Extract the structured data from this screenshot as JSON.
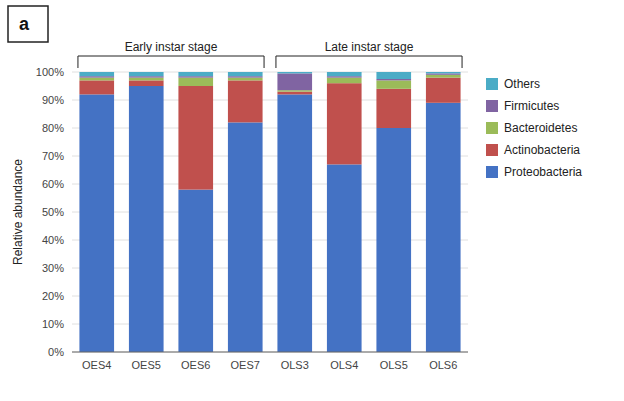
{
  "chart_data": {
    "type": "bar",
    "stacked": true,
    "categories": [
      "OES4",
      "OES5",
      "OES6",
      "OES7",
      "OLS3",
      "OLS4",
      "OLS5",
      "OLS6"
    ],
    "series": [
      {
        "name": "Proteobacteria",
        "color": "#4472C4",
        "values": [
          92,
          95,
          58,
          82,
          92,
          67,
          80,
          89
        ]
      },
      {
        "name": "Actinobacteria",
        "color": "#C0504D",
        "values": [
          5,
          2,
          37,
          15,
          1,
          29,
          14,
          9
        ]
      },
      {
        "name": "Bacteroidetes",
        "color": "#9BBB59",
        "values": [
          1,
          1,
          3,
          1,
          0.5,
          2,
          3,
          1
        ]
      },
      {
        "name": "Firmicutes",
        "color": "#8064A2",
        "values": [
          0.5,
          0.5,
          0.5,
          0.5,
          6,
          0.5,
          0.5,
          0.5
        ]
      },
      {
        "name": "Others",
        "color": "#4BACC6",
        "values": [
          1.5,
          1.5,
          1.5,
          1.5,
          0.5,
          1.5,
          2.5,
          0.5
        ]
      }
    ],
    "y_label": "Relative abundance",
    "ylim": [
      0,
      100
    ],
    "yticks": [
      {
        "value": 0,
        "label": "0%"
      },
      {
        "value": 10,
        "label": "10%"
      },
      {
        "value": 20,
        "label": "20%"
      },
      {
        "value": 30,
        "label": "30%"
      },
      {
        "value": 40,
        "label": "40%"
      },
      {
        "value": 50,
        "label": "50%"
      },
      {
        "value": 60,
        "label": "60%"
      },
      {
        "value": 70,
        "label": "70%"
      },
      {
        "value": 80,
        "label": "80%"
      },
      {
        "value": 90,
        "label": "90%"
      },
      {
        "value": 100,
        "label": "100%"
      }
    ],
    "grid": true,
    "legend": "right",
    "annotations": [
      {
        "text": "Early instar stage",
        "range": [
          0,
          3
        ]
      },
      {
        "text": "Late instar stage",
        "range": [
          4,
          7
        ]
      },
      {
        "text": "a"
      }
    ]
  }
}
